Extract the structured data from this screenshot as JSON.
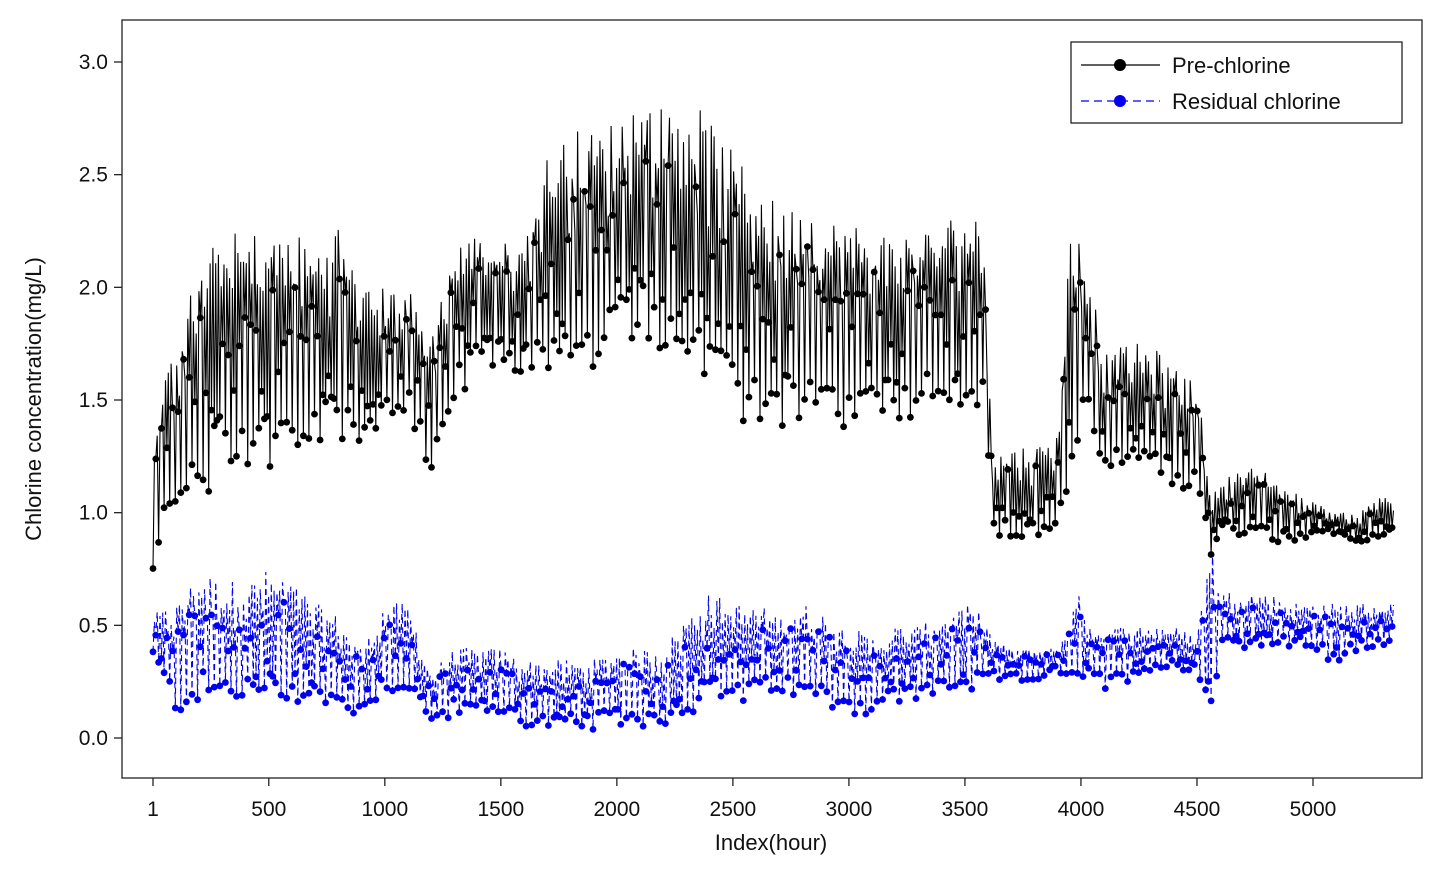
{
  "chart_data": {
    "type": "line",
    "title": "",
    "xlabel": "Index(hour)",
    "ylabel": "Chlorine concentration(mg/L)",
    "xlim": [
      1,
      5350
    ],
    "ylim": [
      -0.1,
      3.05
    ],
    "x_ticks": [
      1,
      500,
      1000,
      1500,
      2000,
      2500,
      3000,
      3500,
      4000,
      4500,
      5000
    ],
    "x_tick_labels": [
      "1",
      "500",
      "1000",
      "1500",
      "2000",
      "2500",
      "3000",
      "3500",
      "4000",
      "4500",
      "5000"
    ],
    "y_ticks": [
      0.0,
      0.5,
      1.0,
      1.5,
      2.0,
      2.5,
      3.0
    ],
    "y_tick_labels": [
      "0.0",
      "0.5",
      "1.0",
      "1.5",
      "2.0",
      "2.5",
      "3.0"
    ],
    "grid": false,
    "legend_position": "top-right",
    "x": [
      1,
      100,
      200,
      300,
      400,
      500,
      600,
      700,
      800,
      900,
      1000,
      1100,
      1200,
      1300,
      1400,
      1500,
      1600,
      1700,
      1800,
      1900,
      2000,
      2100,
      2200,
      2300,
      2400,
      2500,
      2600,
      2700,
      2800,
      2900,
      3000,
      3100,
      3200,
      3300,
      3400,
      3500,
      3580,
      3620,
      3700,
      3800,
      3900,
      3950,
      4000,
      4050,
      4100,
      4200,
      4300,
      4400,
      4500,
      4560,
      4600,
      4700,
      4800,
      4900,
      5000,
      5100,
      5200,
      5300,
      5350
    ],
    "series": [
      {
        "name": "Pre-chlorine",
        "color": "#000000",
        "line": "solid",
        "low": [
          0.75,
          0.95,
          1.0,
          1.2,
          1.2,
          1.2,
          1.25,
          1.25,
          1.3,
          1.3,
          1.4,
          1.4,
          1.15,
          1.45,
          1.6,
          1.65,
          1.6,
          1.6,
          1.55,
          1.6,
          1.7,
          1.8,
          1.7,
          1.6,
          1.5,
          1.35,
          1.4,
          1.35,
          1.4,
          1.35,
          1.35,
          1.35,
          1.4,
          1.4,
          1.4,
          1.45,
          1.4,
          0.9,
          0.85,
          0.85,
          0.95,
          1.1,
          1.4,
          1.3,
          1.2,
          1.15,
          1.15,
          1.1,
          1.1,
          0.8,
          0.9,
          0.9,
          0.85,
          0.85,
          0.9,
          0.9,
          0.85,
          0.9,
          0.9
        ],
        "high": [
          1.35,
          1.8,
          2.1,
          2.25,
          2.25,
          2.25,
          2.25,
          2.2,
          2.3,
          2.0,
          2.0,
          2.0,
          1.8,
          2.2,
          2.25,
          2.2,
          2.2,
          2.6,
          2.7,
          2.7,
          2.75,
          2.85,
          2.8,
          2.85,
          2.75,
          2.6,
          2.5,
          2.35,
          2.4,
          2.3,
          2.3,
          2.25,
          2.25,
          2.25,
          2.3,
          2.35,
          2.3,
          1.25,
          1.3,
          1.3,
          1.35,
          2.25,
          2.25,
          2.0,
          1.7,
          1.75,
          1.75,
          1.65,
          1.6,
          1.05,
          1.15,
          1.2,
          1.2,
          1.1,
          1.05,
          1.0,
          1.0,
          1.1,
          1.05
        ]
      },
      {
        "name": "Residual chlorine",
        "color": "#0000ee",
        "line": "dashed",
        "low": [
          0.35,
          0.1,
          0.15,
          0.15,
          0.15,
          0.15,
          0.15,
          0.15,
          0.1,
          0.1,
          0.2,
          0.2,
          0.05,
          0.1,
          0.1,
          0.1,
          0.05,
          0.03,
          0.03,
          0.03,
          0.05,
          0.05,
          0.05,
          0.1,
          0.15,
          0.15,
          0.15,
          0.2,
          0.15,
          0.15,
          0.1,
          0.1,
          0.15,
          0.15,
          0.2,
          0.2,
          0.2,
          0.25,
          0.25,
          0.25,
          0.3,
          0.2,
          0.25,
          0.25,
          0.2,
          0.25,
          0.3,
          0.3,
          0.3,
          0.05,
          0.4,
          0.4,
          0.4,
          0.4,
          0.4,
          0.3,
          0.4,
          0.4,
          0.45
        ],
        "high": [
          0.55,
          0.6,
          0.75,
          0.7,
          0.7,
          0.75,
          0.7,
          0.6,
          0.55,
          0.4,
          0.6,
          0.6,
          0.3,
          0.4,
          0.4,
          0.4,
          0.35,
          0.35,
          0.35,
          0.35,
          0.4,
          0.4,
          0.4,
          0.55,
          0.65,
          0.6,
          0.6,
          0.55,
          0.6,
          0.55,
          0.5,
          0.45,
          0.5,
          0.5,
          0.55,
          0.6,
          0.55,
          0.45,
          0.4,
          0.4,
          0.4,
          0.55,
          0.65,
          0.5,
          0.5,
          0.5,
          0.5,
          0.5,
          0.45,
          0.9,
          0.65,
          0.65,
          0.65,
          0.6,
          0.6,
          0.6,
          0.6,
          0.6,
          0.6
        ]
      }
    ]
  }
}
